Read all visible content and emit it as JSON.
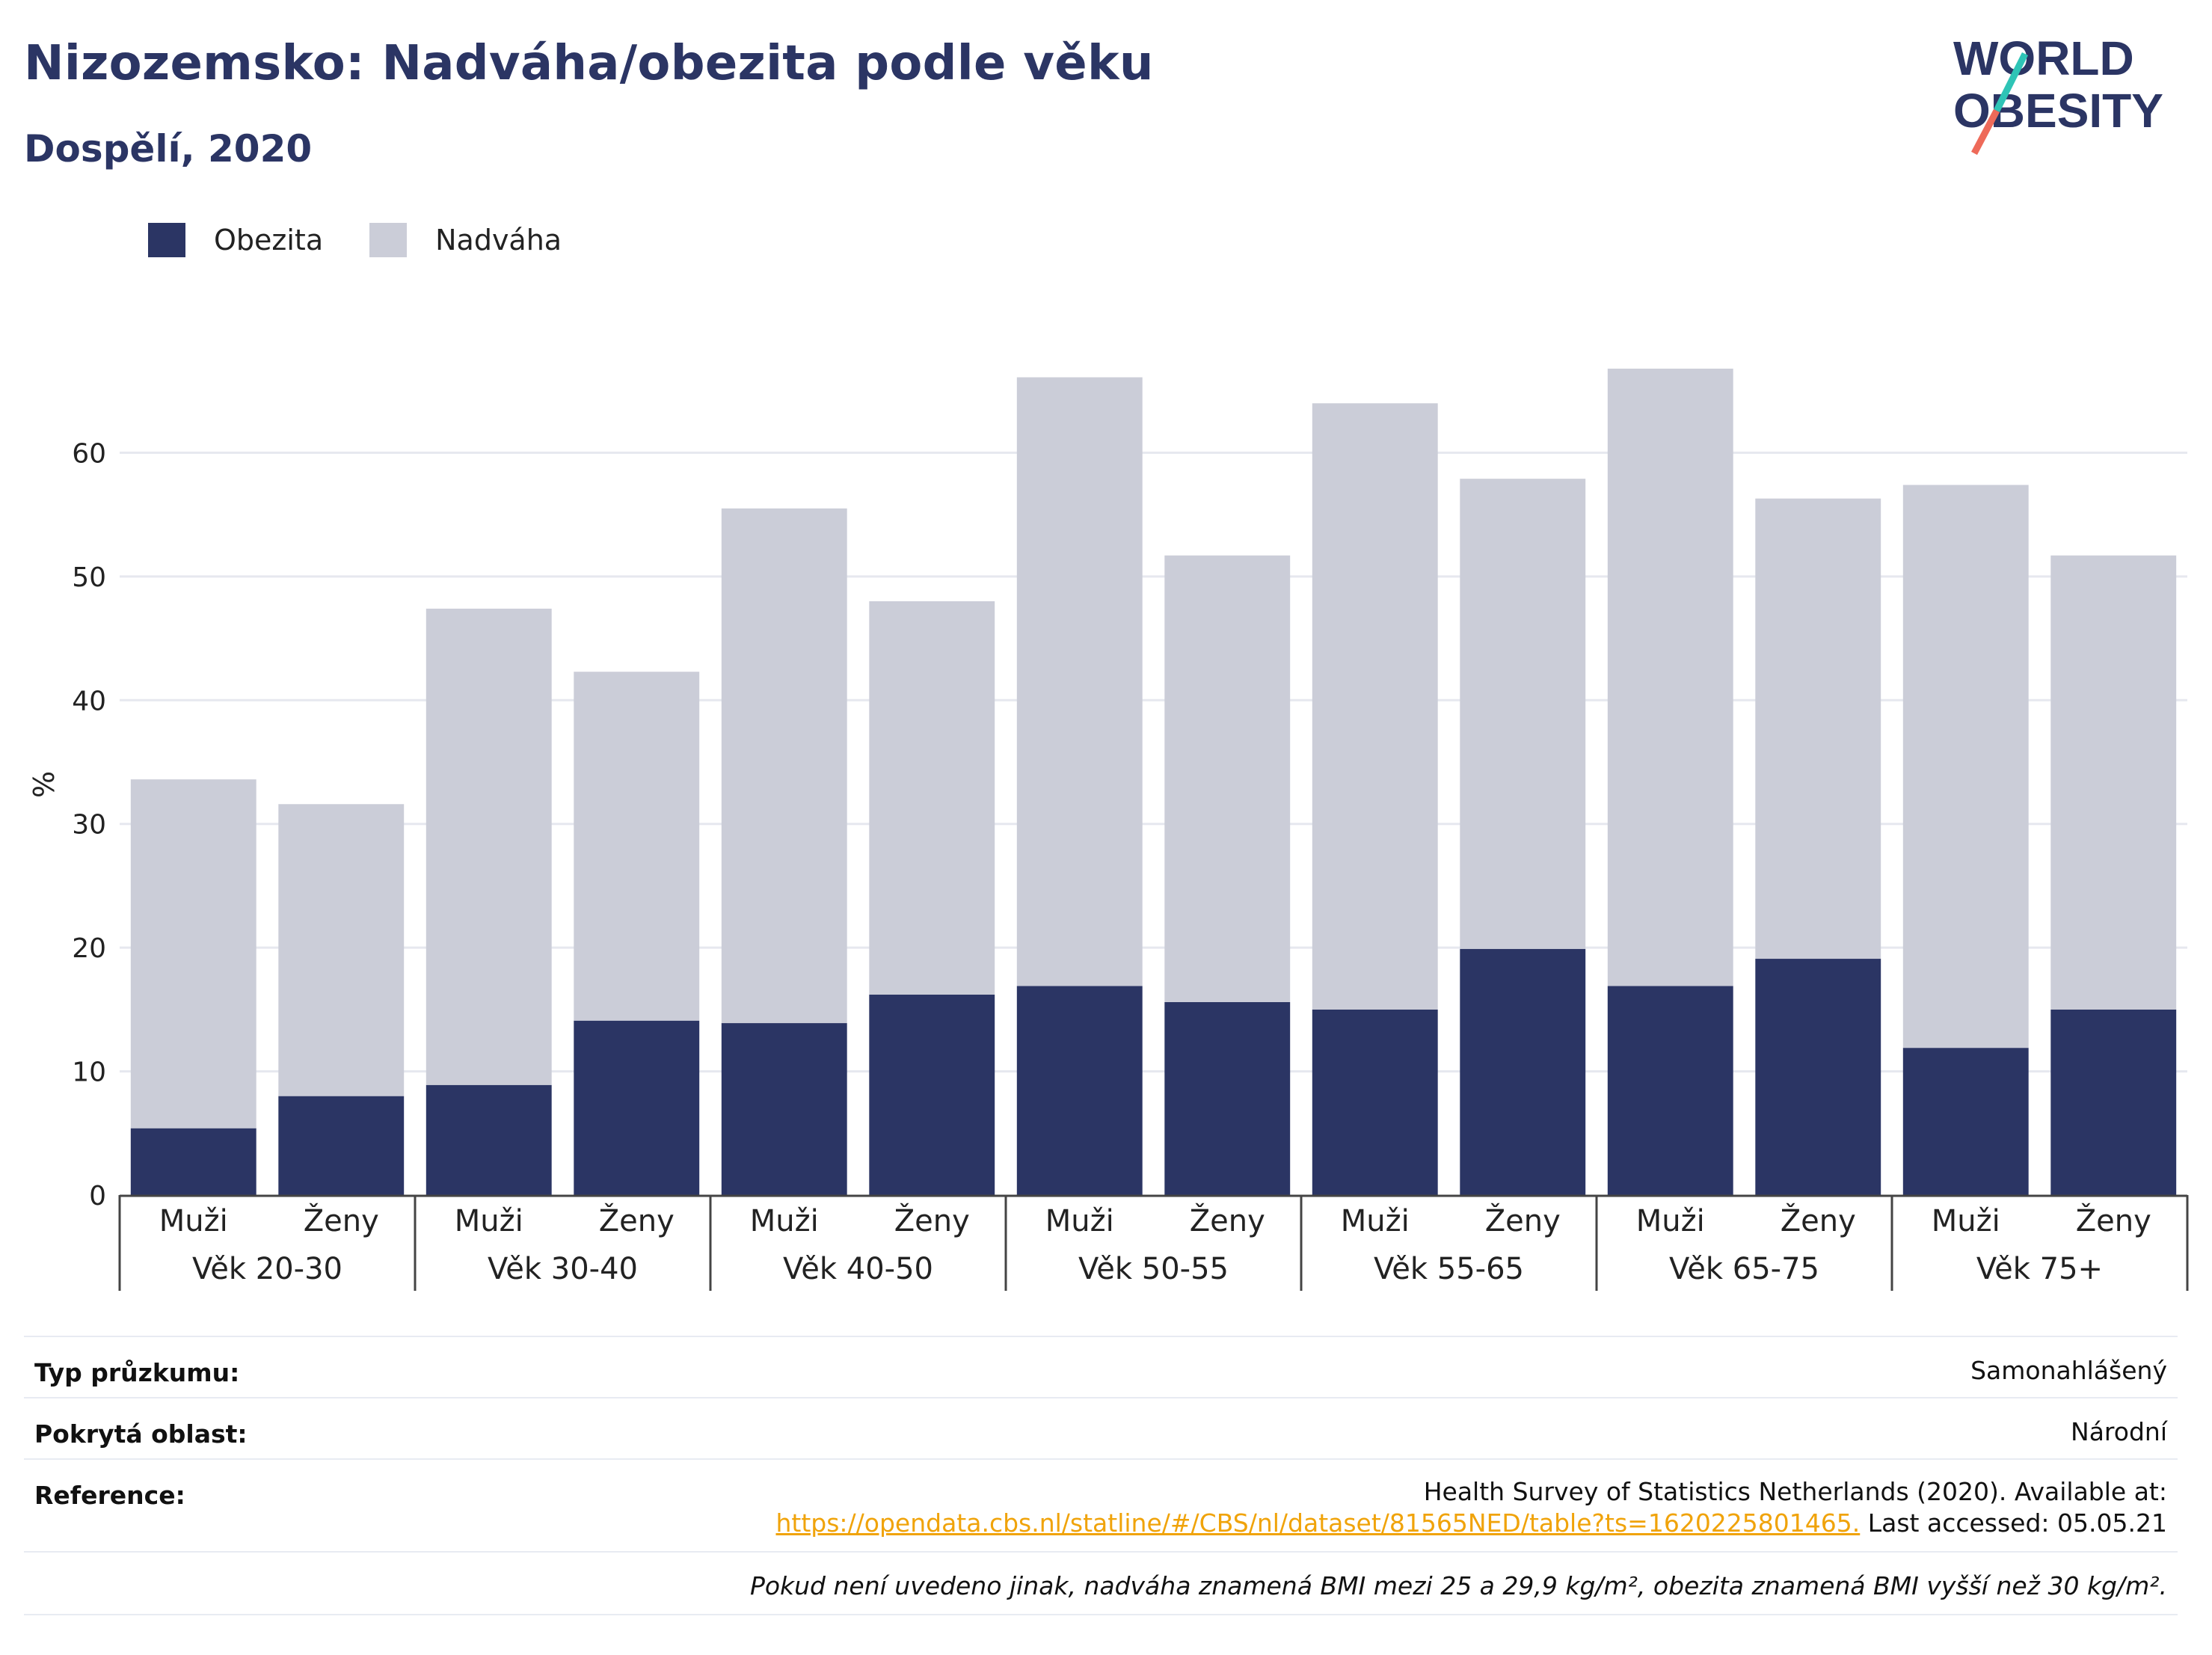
{
  "header": {
    "title": "Nizozemsko: Nadváha/obezita podle věku",
    "subtitle": "Dospělí, 2020"
  },
  "logo": {
    "line1": "WORLD",
    "line2": "OBESITY",
    "colors": {
      "text": "#2b3564",
      "accent_teal": "#2ec4b6",
      "accent_red": "#ee6a59"
    }
  },
  "colors": {
    "obesity": "#2b3564",
    "overweight": "#cbcdd8",
    "grid": "#e6e8ef",
    "axis": "#444444",
    "link": "#f0a30a"
  },
  "chart_data": {
    "type": "bar",
    "stacked": true,
    "ylabel": "%",
    "ylim": [
      0,
      70
    ],
    "yticks": [
      0,
      10,
      20,
      30,
      40,
      50,
      60
    ],
    "grid": true,
    "legend_position": "top-left",
    "groups": [
      "Věk 20-30",
      "Věk 30-40",
      "Věk 40-50",
      "Věk 50-55",
      "Věk 55-65",
      "Věk 65-75",
      "Věk 75+"
    ],
    "sub_categories": [
      "Muži",
      "Ženy"
    ],
    "series": [
      {
        "name": "Obezita",
        "values": [
          5.4,
          8.0,
          8.9,
          14.1,
          13.9,
          16.2,
          16.9,
          15.6,
          15.0,
          19.9,
          16.9,
          19.1,
          11.9,
          15.0
        ]
      },
      {
        "name": "Nadváha",
        "values": [
          28.2,
          23.6,
          38.5,
          28.2,
          41.6,
          31.8,
          49.2,
          36.1,
          49.0,
          38.0,
          49.9,
          37.2,
          45.5,
          36.7
        ]
      }
    ]
  },
  "info": {
    "survey_type_label": "Typ průzkumu:",
    "survey_type_value": "Samonahlášený",
    "coverage_label": "Pokrytá oblast:",
    "coverage_value": "Národní",
    "reference_label": "Reference:",
    "reference_line1": "Health Survey of Statistics Netherlands (2020). Available at:",
    "reference_link": "https://opendata.cbs.nl/statline/#/CBS/nl/dataset/81565NED/table?ts=1620225801465.",
    "reference_accessed": " Last accessed: 05.05.21",
    "note": "Pokud není uvedeno jinak, nadváha znamená BMI mezi 25 a 29,9 kg/m², obezita znamená BMI vyšší než 30 kg/m²."
  }
}
